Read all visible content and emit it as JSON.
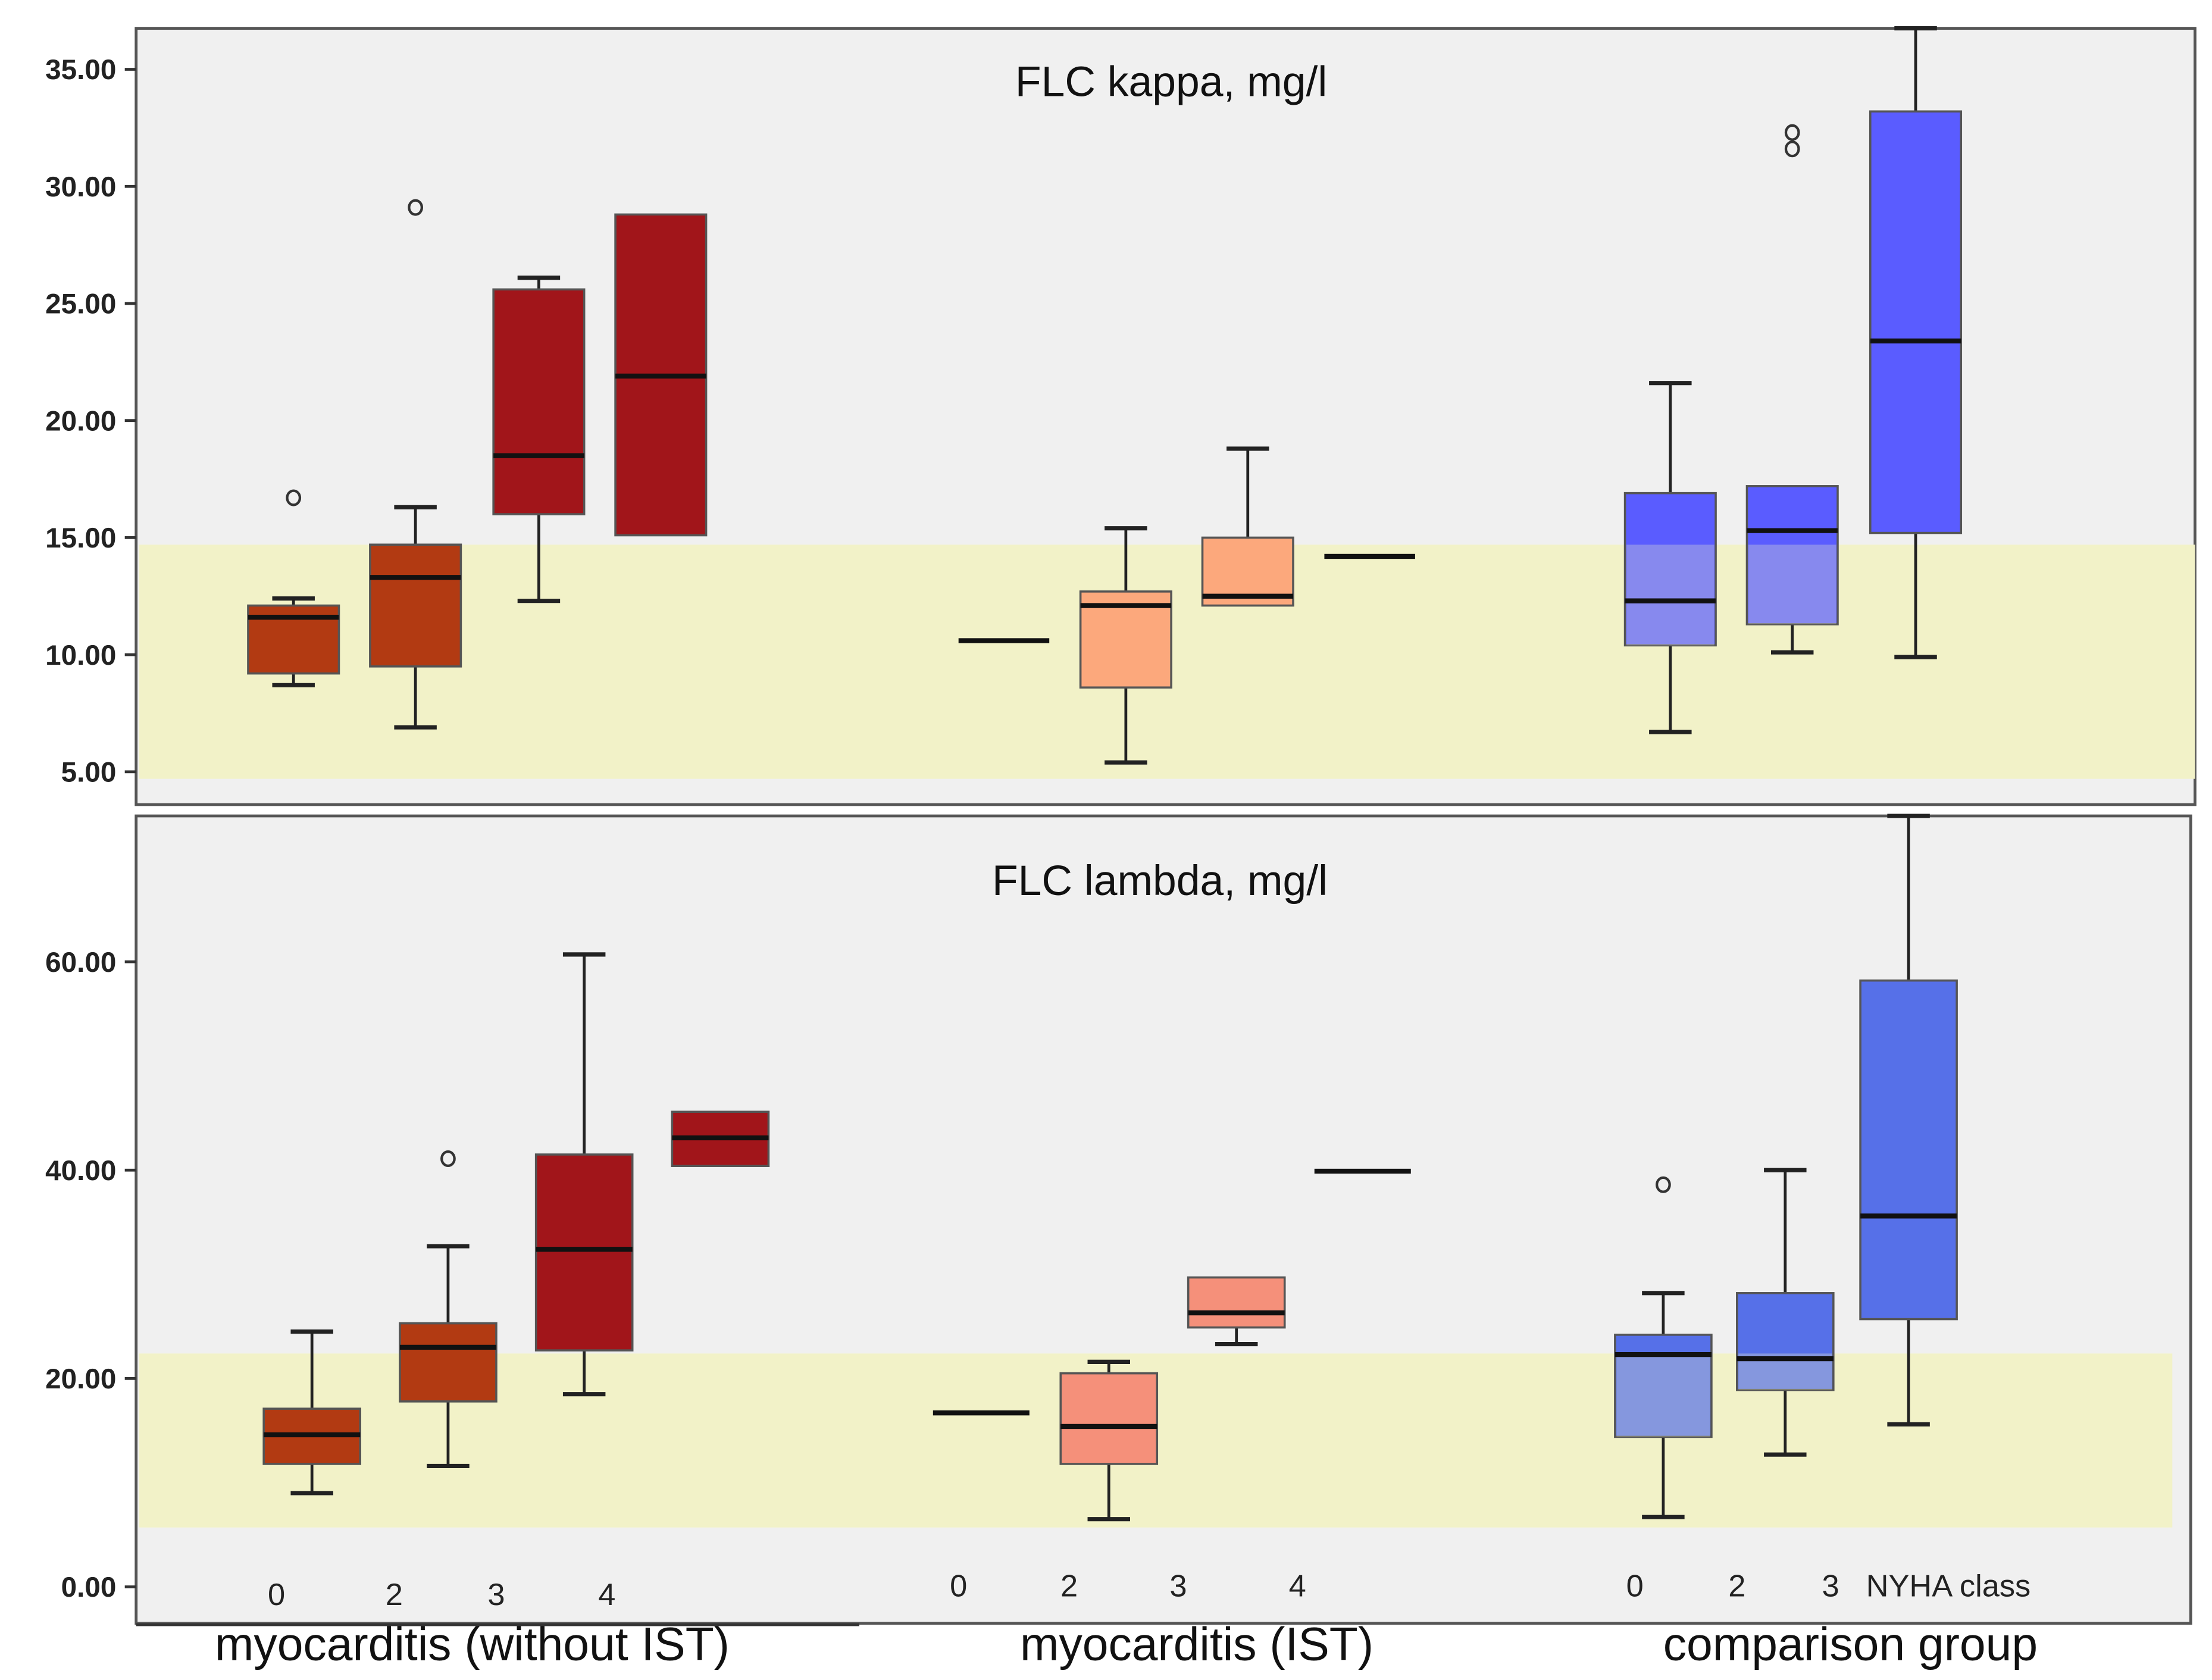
{
  "chart_data": [
    {
      "type": "box",
      "title": "FLC kappa, mg/l",
      "ylim": [
        3.6,
        36.75
      ],
      "yticks": [
        "5.00",
        "10.00",
        "15.00",
        "20.00",
        "25.00",
        "30.00",
        "35.00"
      ],
      "reference_range": [
        4.7,
        14.7
      ],
      "groups": [
        {
          "name": "myocarditis (without IST)",
          "boxes": [
            {
              "nyha": "0",
              "color": "#b23a12",
              "whisker_low": 8.7,
              "q1": 9.2,
              "median": 11.6,
              "q3": 12.1,
              "whisker_high": 12.4,
              "outliers": [
                16.7
              ]
            },
            {
              "nyha": "2",
              "color": "#b23a12",
              "whisker_low": 6.9,
              "q1": 9.5,
              "median": 13.3,
              "q3": 14.7,
              "whisker_high": 16.3,
              "outliers": [
                29.1
              ]
            },
            {
              "nyha": "3",
              "color": "#a1151a",
              "whisker_low": 12.3,
              "q1": 16.0,
              "median": 18.5,
              "q3": 25.6,
              "whisker_high": 26.1,
              "outliers": []
            },
            {
              "nyha": "4",
              "color": "#a1151a",
              "q1": 15.1,
              "median": 21.9,
              "q3": 28.8,
              "outliers": []
            }
          ]
        },
        {
          "name": "myocarditis (IST)",
          "boxes": [
            {
              "nyha": "0",
              "color": "#fca87c",
              "median": 10.6,
              "outliers": []
            },
            {
              "nyha": "2",
              "color": "#fca87c",
              "whisker_low": 5.4,
              "q1": 8.6,
              "median": 12.1,
              "q3": 12.7,
              "whisker_high": 15.4,
              "outliers": []
            },
            {
              "nyha": "3",
              "color": "#fca87c",
              "q1": 12.1,
              "median": 12.5,
              "q3": 15.0,
              "whisker_high": 18.8,
              "outliers": []
            },
            {
              "nyha": "4",
              "color": "#fca87c",
              "median": 14.2,
              "outliers": []
            }
          ]
        },
        {
          "name": "comparison group",
          "boxes": [
            {
              "nyha": "0",
              "color": "#5a5cff",
              "whisker_low": 6.7,
              "q1": 10.4,
              "median": 12.3,
              "q3": 16.9,
              "whisker_high": 21.6,
              "outliers": []
            },
            {
              "nyha": "2",
              "color": "#5a5cff",
              "whisker_low": 10.1,
              "q1": 11.3,
              "median": 15.3,
              "q3": 17.2,
              "outliers": [
                31.6,
                32.3
              ]
            },
            {
              "nyha": "3",
              "color": "#5a5cff",
              "whisker_low": 9.9,
              "q1": 15.2,
              "median": 23.4,
              "q3": 33.2,
              "whisker_high": 36.75,
              "outliers": []
            }
          ]
        }
      ]
    },
    {
      "type": "box",
      "title": "FLC lambda, mg/l",
      "ylim": [
        -3.5,
        74.0
      ],
      "yticks": [
        "0.00",
        "20.00",
        "40.00",
        "60.00"
      ],
      "reference_range": [
        5.7,
        22.4
      ],
      "groups": [
        {
          "name": "myocarditis (without IST)",
          "boxes": [
            {
              "nyha": "0",
              "color": "#b23a12",
              "whisker_low": 9.0,
              "q1": 11.8,
              "median": 14.6,
              "q3": 17.1,
              "whisker_high": 24.5,
              "outliers": []
            },
            {
              "nyha": "2",
              "color": "#b23a12",
              "whisker_low": 11.6,
              "q1": 17.8,
              "median": 23.0,
              "q3": 25.3,
              "whisker_high": 32.7,
              "outliers": [
                41.1
              ]
            },
            {
              "nyha": "3",
              "color": "#a1151a",
              "whisker_low": 18.5,
              "q1": 22.7,
              "median": 32.4,
              "q3": 41.5,
              "whisker_high": 60.7,
              "outliers": []
            },
            {
              "nyha": "4",
              "color": "#a1151a",
              "q1": 40.4,
              "median": 43.1,
              "q3": 45.6,
              "outliers": []
            }
          ]
        },
        {
          "name": "myocarditis (IST)",
          "boxes": [
            {
              "nyha": "0",
              "color": "#f5907a",
              "median": 16.7,
              "outliers": []
            },
            {
              "nyha": "2",
              "color": "#f5907a",
              "whisker_low": 6.5,
              "q1": 11.8,
              "median": 15.4,
              "q3": 20.5,
              "whisker_high": 21.6,
              "outliers": []
            },
            {
              "nyha": "3",
              "color": "#f5907a",
              "whisker_low": 23.3,
              "q1": 24.9,
              "median": 26.3,
              "q3": 29.7,
              "outliers": []
            },
            {
              "nyha": "4",
              "color": "#f5907a",
              "median": 39.9,
              "outliers": []
            }
          ]
        },
        {
          "name": "comparison group",
          "boxes": [
            {
              "nyha": "0",
              "color": "#5670e8",
              "whisker_low": 6.7,
              "q1": 14.4,
              "median": 22.3,
              "q3": 24.2,
              "whisker_high": 28.2,
              "outliers": [
                38.6
              ]
            },
            {
              "nyha": "2",
              "color": "#5670e8",
              "whisker_low": 12.7,
              "q1": 18.9,
              "median": 21.9,
              "q3": 28.2,
              "whisker_high": 40.0,
              "outliers": []
            },
            {
              "nyha": "3",
              "color": "#5670e8",
              "whisker_low": 15.6,
              "q1": 25.7,
              "median": 35.6,
              "q3": 58.2,
              "whisker_high": 74.0,
              "outliers": []
            }
          ]
        }
      ]
    }
  ],
  "x_axis": {
    "category_labels": [
      [
        "0",
        "2",
        "3",
        "4"
      ],
      [
        "0",
        "2",
        "3",
        "4"
      ],
      [
        "0",
        "2",
        "3"
      ]
    ],
    "axis_label": "NYHA class",
    "group_labels": [
      "myocarditis (without IST)",
      "myocarditis (IST)",
      "comparison group"
    ]
  },
  "colors": {
    "panel_bg": "#f0f0f0",
    "reference_band": "#f2f2c8"
  }
}
